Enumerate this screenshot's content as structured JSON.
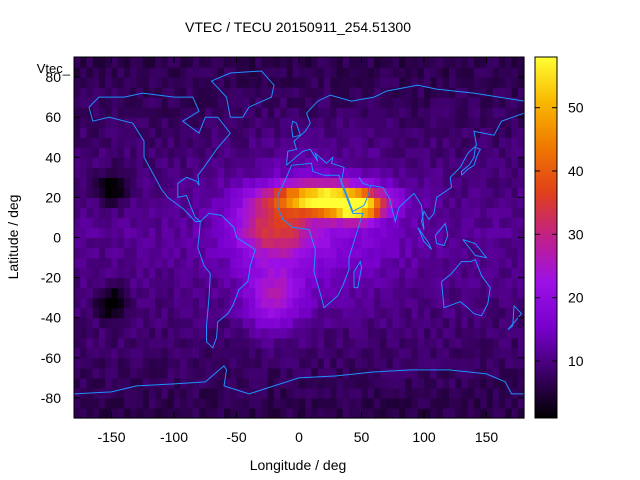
{
  "chart_data": {
    "type": "heatmap",
    "title": "VTEC / TECU 20150911_254.51300",
    "xlabel": "Longitude / deg",
    "ylabel": "Latitude / deg",
    "series_key": "Vtec_",
    "xlim": [
      -180,
      180
    ],
    "ylim": [
      -90,
      90
    ],
    "xticks": [
      -150,
      -100,
      -50,
      0,
      50,
      100,
      150
    ],
    "yticks": [
      -80,
      -60,
      -40,
      -20,
      0,
      20,
      40,
      60,
      80
    ],
    "colorbar": {
      "range": [
        1,
        58
      ],
      "ticks": [
        10,
        20,
        30,
        40,
        50
      ],
      "colormap": [
        "#000000",
        "#3c0068",
        "#7800cc",
        "#9c10e6",
        "#c0208a",
        "#e0401a",
        "#f07800",
        "#f8b800",
        "#ffff33"
      ]
    },
    "grid": {
      "lon_step_deg": 5,
      "lat_step_deg": 5
    },
    "features": [
      {
        "name": "equatorial-anomaly-peak",
        "lon": 20,
        "lat": 20,
        "value": 54,
        "spread_lon": 40,
        "spread_lat": 7
      },
      {
        "name": "secondary-crest-africa",
        "lon": 45,
        "lat": 15,
        "value": 50,
        "spread_lon": 22,
        "spread_lat": 6
      },
      {
        "name": "atlantic-tongue",
        "lon": -20,
        "lat": 5,
        "value": 30,
        "spread_lon": 30,
        "spread_lat": 14
      },
      {
        "name": "south-atlantic-lobe",
        "lon": -20,
        "lat": -30,
        "value": 26,
        "spread_lon": 22,
        "spread_lat": 16
      },
      {
        "name": "pacific-low-north",
        "lon": -150,
        "lat": 25,
        "value": 2,
        "spread_lon": 12,
        "spread_lat": 8
      },
      {
        "name": "pacific-low-south",
        "lon": -150,
        "lat": -32,
        "value": 2,
        "spread_lon": 12,
        "spread_lat": 8
      }
    ]
  }
}
